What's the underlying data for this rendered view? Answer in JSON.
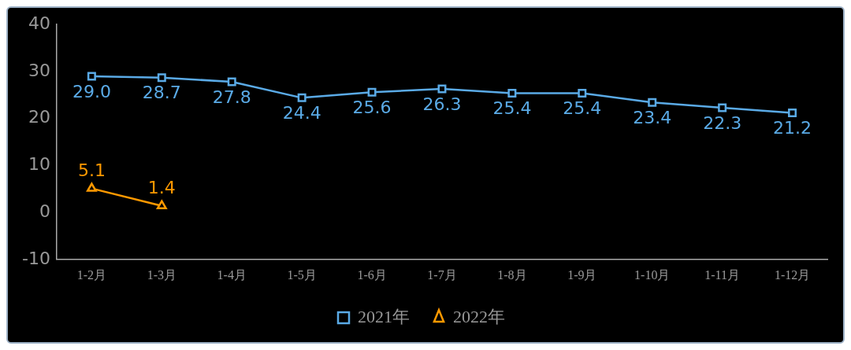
{
  "chart_data": {
    "type": "line",
    "categories": [
      "1-2月",
      "1-3月",
      "1-4月",
      "1-5月",
      "1-6月",
      "1-7月",
      "1-8月",
      "1-9月",
      "1-10月",
      "1-11月",
      "1-12月"
    ],
    "series": [
      {
        "name": "2021年",
        "color": "#5aaae6",
        "marker": "square",
        "values": [
          29.0,
          28.7,
          27.8,
          24.4,
          25.6,
          26.3,
          25.4,
          25.4,
          23.4,
          22.3,
          21.2
        ],
        "value_labels": [
          "29.0",
          "28.7",
          "27.8",
          "24.4",
          "25.6",
          "26.3",
          "25.4",
          "25.4",
          "23.4",
          "22.3",
          "21.2"
        ]
      },
      {
        "name": "2022年",
        "color": "#ff9900",
        "marker": "triangle",
        "values": [
          5.1,
          1.4,
          null,
          null,
          null,
          null,
          null,
          null,
          null,
          null,
          null
        ],
        "value_labels": [
          "5.1",
          "1.4",
          null,
          null,
          null,
          null,
          null,
          null,
          null,
          null,
          null
        ]
      }
    ],
    "ylim": [
      -10,
      40
    ],
    "yticks": [
      -10,
      0,
      10,
      20,
      30,
      40
    ],
    "grid": false,
    "legend": "bottom",
    "line_style": "solid"
  }
}
